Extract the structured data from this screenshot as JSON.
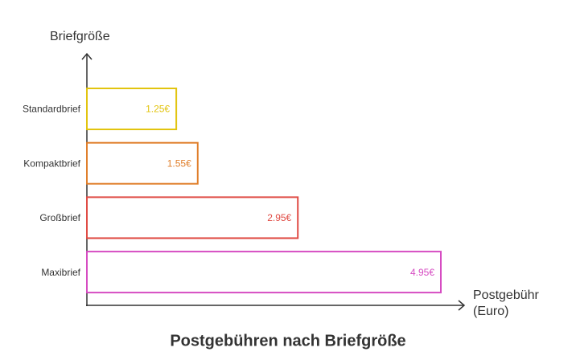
{
  "chart_data": {
    "type": "bar",
    "orientation": "horizontal",
    "title": "Postgebühren nach Briefgröße",
    "ylabel": "Briefgröße",
    "xlabel": "Postgebühr (Euro)",
    "categories": [
      "Standardbrief",
      "Kompaktbrief",
      "Großbrief",
      "Maxibrief"
    ],
    "values": [
      1.25,
      1.55,
      2.95,
      4.95
    ],
    "value_labels": [
      "1.25€",
      "1.55€",
      "2.95€",
      "4.95€"
    ],
    "colors": [
      "#e2c40f",
      "#e07f2c",
      "#e04b44",
      "#d64cc2"
    ]
  }
}
